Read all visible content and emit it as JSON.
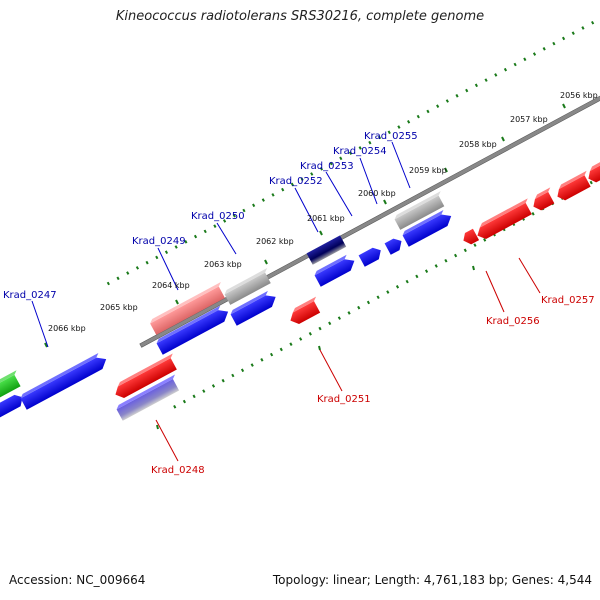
{
  "title": "Kineococcus radiotolerans SRS30216, complete genome",
  "footer": {
    "accession": "Accession: NC_009664",
    "summary": "Topology: linear; Length: 4,761,183 bp; Genes: 4,544"
  },
  "colors": {
    "forward_gene": "#0000ee",
    "reverse_gene": "#ee0000",
    "label_forward": "#0000aa",
    "label_reverse": "#cc0000",
    "tick": "#1a7a1a",
    "axis": "#777777"
  },
  "scale_ticks": [
    {
      "label": "2056 kbp"
    },
    {
      "label": "2057 kbp"
    },
    {
      "label": "2058 kbp"
    },
    {
      "label": "2059 kbp"
    },
    {
      "label": "2060 kbp"
    },
    {
      "label": "2061 kbp"
    },
    {
      "label": "2062 kbp"
    },
    {
      "label": "2063 kbp"
    },
    {
      "label": "2064 kbp"
    },
    {
      "label": "2065 kbp"
    },
    {
      "label": "2066 kbp"
    }
  ],
  "gene_labels": [
    {
      "name": "Krad_0247",
      "strand": "forward"
    },
    {
      "name": "Krad_0248",
      "strand": "reverse"
    },
    {
      "name": "Krad_0249",
      "strand": "forward"
    },
    {
      "name": "Krad_0250",
      "strand": "forward"
    },
    {
      "name": "Krad_0251",
      "strand": "reverse"
    },
    {
      "name": "Krad_0252",
      "strand": "forward"
    },
    {
      "name": "Krad_0253",
      "strand": "forward"
    },
    {
      "name": "Krad_0254",
      "strand": "forward"
    },
    {
      "name": "Krad_0255",
      "strand": "forward"
    },
    {
      "name": "Krad_0256",
      "strand": "reverse"
    },
    {
      "name": "Krad_0257",
      "strand": "reverse"
    }
  ]
}
